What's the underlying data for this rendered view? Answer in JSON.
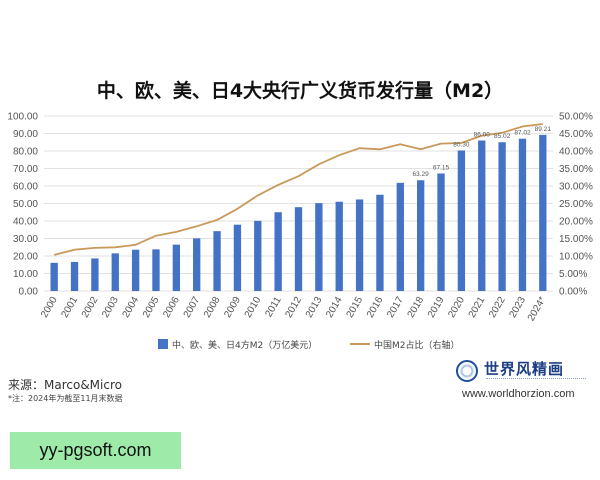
{
  "chart_data": {
    "type": "bar",
    "title": "中、欧、美、日4大央行广义货币发行量（M2）",
    "categories": [
      "2000",
      "2001",
      "2002",
      "2003",
      "2004",
      "2005",
      "2006",
      "2007",
      "2008",
      "2009",
      "2010",
      "2011",
      "2012",
      "2013",
      "2014",
      "2015",
      "2016",
      "2017",
      "2018",
      "2019",
      "2020",
      "2021",
      "2022",
      "2023",
      "2024*"
    ],
    "series": [
      {
        "name": "中、欧、美、日4方M2（万亿美元）",
        "type": "bar",
        "axis": "left",
        "color": "#4472c4",
        "values": [
          16.1,
          16.6,
          18.6,
          21.5,
          23.6,
          23.8,
          26.5,
          30.1,
          34.2,
          37.9,
          40.1,
          45.0,
          47.9,
          50.2,
          51.0,
          52.3,
          55.0,
          61.8,
          63.29,
          67.15,
          80.3,
          86.0,
          85.02,
          87.02,
          89.21
        ],
        "data_labels": [
          "",
          "",
          "",
          "",
          "",
          "",
          "",
          "",
          "",
          "",
          "",
          "",
          "",
          "",
          "",
          "",
          "",
          "",
          "63.29",
          "67.15",
          "80.30",
          "86.00",
          "85.02",
          "87.02",
          "89.21"
        ]
      },
      {
        "name": "中国M2占比（右轴）",
        "type": "line",
        "axis": "right",
        "color": "#c9995a",
        "values": [
          10.3,
          11.8,
          12.3,
          12.5,
          13.2,
          15.8,
          16.9,
          18.5,
          20.3,
          23.5,
          27.3,
          30.3,
          32.8,
          36.2,
          38.8,
          40.8,
          40.5,
          41.9,
          40.5,
          42.1,
          42.3,
          44.4,
          45.2,
          47.0,
          47.7
        ]
      }
    ],
    "y_left": {
      "range": [
        0,
        100
      ],
      "ticks": [
        "0.00",
        "10.00",
        "20.00",
        "30.00",
        "40.00",
        "50.00",
        "60.00",
        "70.00",
        "80.00",
        "90.00",
        "100.00"
      ]
    },
    "y_right": {
      "range": [
        0,
        50
      ],
      "ticks": [
        "0.00%",
        "5.00%",
        "10.00%",
        "15.00%",
        "20.00%",
        "25.00%",
        "30.00%",
        "35.00%",
        "40.00%",
        "45.00%",
        "50.00%"
      ]
    },
    "grid": true,
    "legend_position": "bottom"
  },
  "source": "来源：Marco&Micro",
  "footnote": "*注：2024年为截至11月末数据",
  "logo": {
    "name": "世界风精画",
    "url": "www.worldhorzion.com",
    "icon": "globe-icon"
  },
  "watermark": "yy-pgsoft.com"
}
